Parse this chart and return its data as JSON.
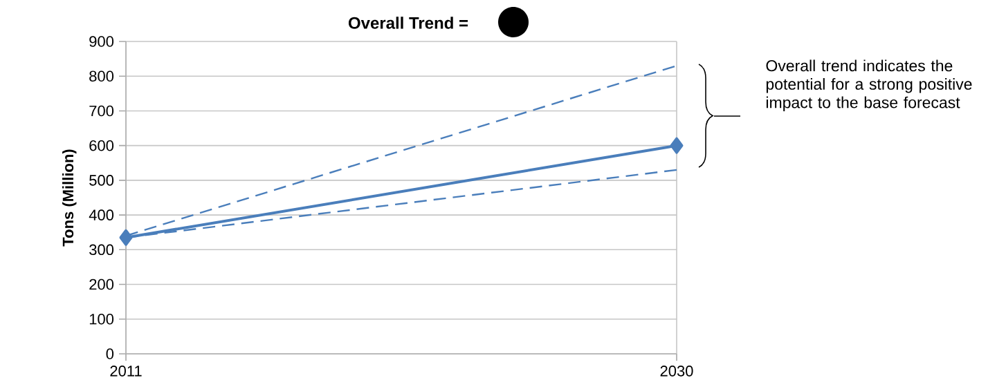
{
  "chart_data": {
    "type": "line",
    "title": "Overall Trend =",
    "ylabel": "Tons (Million)",
    "x": [
      2011,
      2030
    ],
    "xlim": [
      2011,
      2030
    ],
    "xticks": [
      2011,
      2030
    ],
    "ylim": [
      0,
      900
    ],
    "yticks": [
      0,
      100,
      200,
      300,
      400,
      500,
      600,
      700,
      800,
      900
    ],
    "grid": true,
    "series": [
      {
        "color": "#4a7ebb",
        "values": [
          335,
          600
        ],
        "marker": "diamond",
        "line_style": "solid"
      },
      {
        "color": "#4a7ebb",
        "values": [
          340,
          830
        ],
        "marker": "none",
        "line_style": "dashed"
      },
      {
        "color": "#4a7ebb",
        "values": [
          335,
          530
        ],
        "marker": "none",
        "line_style": "dashed"
      }
    ],
    "annotations": [
      "Overall trend indicates the potential for a strong positive impact to the base forecast"
    ]
  }
}
